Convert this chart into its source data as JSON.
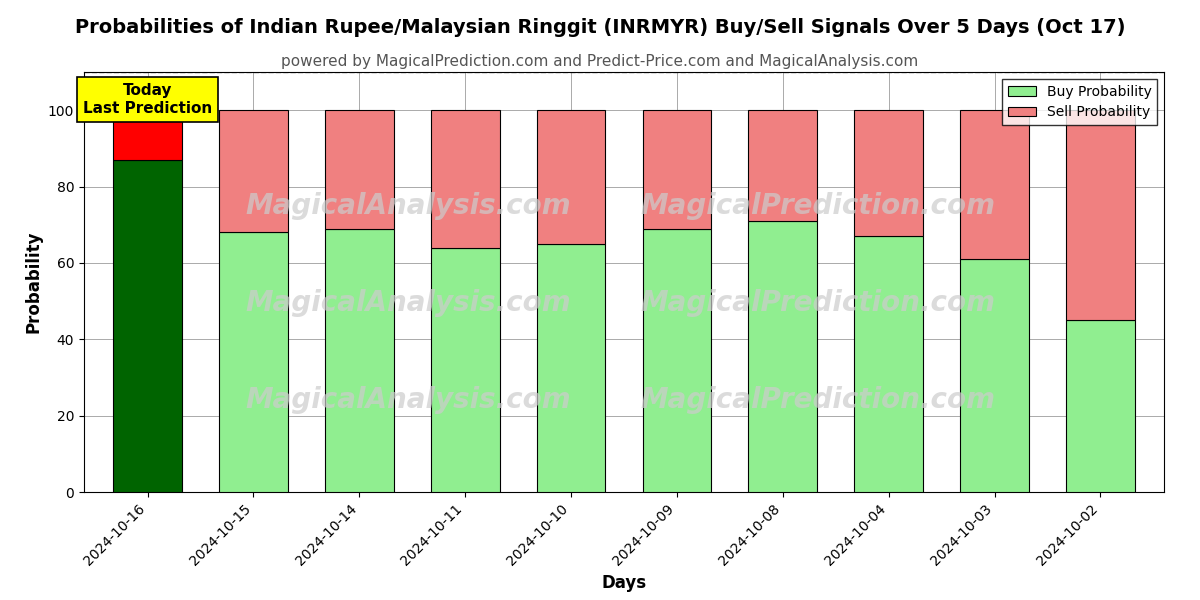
{
  "title": "Probabilities of Indian Rupee/Malaysian Ringgit (INRMYR) Buy/Sell Signals Over 5 Days (Oct 17)",
  "subtitle": "powered by MagicalPrediction.com and Predict-Price.com and MagicalAnalysis.com",
  "xlabel": "Days",
  "ylabel": "Probability",
  "categories": [
    "2024-10-16",
    "2024-10-15",
    "2024-10-14",
    "2024-10-11",
    "2024-10-10",
    "2024-10-09",
    "2024-10-08",
    "2024-10-04",
    "2024-10-03",
    "2024-10-02"
  ],
  "buy_values": [
    87,
    68,
    69,
    64,
    65,
    69,
    71,
    67,
    61,
    45
  ],
  "sell_values": [
    13,
    32,
    31,
    36,
    35,
    31,
    29,
    33,
    39,
    55
  ],
  "today_buy_color": "#006400",
  "today_sell_color": "#FF0000",
  "buy_color": "#90EE90",
  "sell_color": "#F08080",
  "bar_edge_color": "#000000",
  "ylim": [
    0,
    110
  ],
  "yticks": [
    0,
    20,
    40,
    60,
    80,
    100
  ],
  "dashed_line_y": 110,
  "today_label": "Today\nLast Prediction",
  "today_label_bg": "#FFFF00",
  "bg_color": "#ffffff",
  "grid_color": "#aaaaaa",
  "watermark1": "MagicalAnalysis.com",
  "watermark2": "MagicalPrediction.com",
  "title_fontsize": 14,
  "subtitle_fontsize": 11,
  "axis_label_fontsize": 12,
  "tick_fontsize": 10
}
